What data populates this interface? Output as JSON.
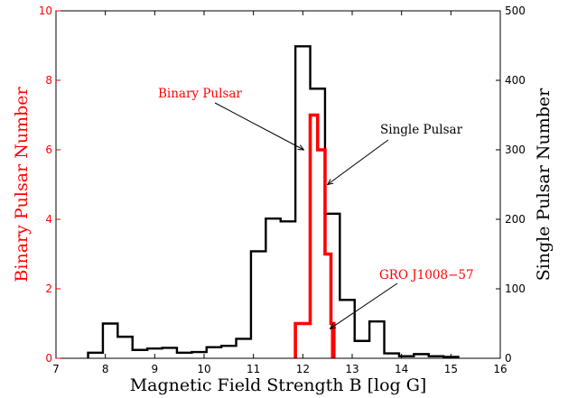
{
  "chart_data": {
    "type": "histogram",
    "xlabel": "Magnetic Field Strength B [log G]",
    "ylabel_left": "Binary Pulsar Number",
    "ylabel_right": "Single Pulsar Number",
    "xlim": [
      7,
      16
    ],
    "ylim_left": [
      0,
      10
    ],
    "ylim_right": [
      0,
      500
    ],
    "xticks": [
      7,
      8,
      9,
      10,
      11,
      12,
      13,
      14,
      15,
      16
    ],
    "yticks_left": [
      0,
      2,
      4,
      6,
      8,
      10
    ],
    "yticks_right": [
      0,
      100,
      200,
      300,
      400,
      500
    ],
    "grid": false,
    "colors": {
      "binary": "#ff0000",
      "single": "#000000",
      "left_axis": "#ff0000",
      "right_axis": "#000000"
    },
    "series": [
      {
        "name": "Single Pulsar",
        "axis": "right",
        "bin_edges": [
          7.65,
          7.95,
          8.25,
          8.55,
          8.85,
          9.15,
          9.45,
          9.75,
          10.05,
          10.35,
          10.65,
          10.95,
          11.25,
          11.55,
          11.85,
          12.15,
          12.45,
          12.75,
          13.05,
          13.35,
          13.65,
          13.95,
          14.25,
          14.55,
          14.85,
          15.15
        ],
        "values": [
          8,
          50,
          31,
          12,
          14,
          15,
          8,
          9,
          16,
          18,
          28,
          154,
          201,
          197,
          449,
          388,
          208,
          84,
          25,
          53,
          7,
          3,
          6,
          3,
          2
        ]
      },
      {
        "name": "Binary Pulsar",
        "axis": "left",
        "bin_edges": [
          11.85,
          12.15,
          12.3,
          12.45,
          12.57,
          12.6,
          12.63
        ],
        "values": [
          1,
          7,
          6,
          3,
          1,
          1
        ]
      }
    ],
    "annotations": [
      {
        "text": "Binary Pulsar",
        "color": "#ff0000",
        "points_to": [
          12.02,
          6.0
        ]
      },
      {
        "text": "Single Pulsar",
        "color": "#000000",
        "points_to": [
          12.5,
          5.0
        ]
      },
      {
        "text": "GRO J1008−57",
        "color": "#ff0000",
        "points_to": [
          12.55,
          0.85
        ]
      }
    ]
  }
}
